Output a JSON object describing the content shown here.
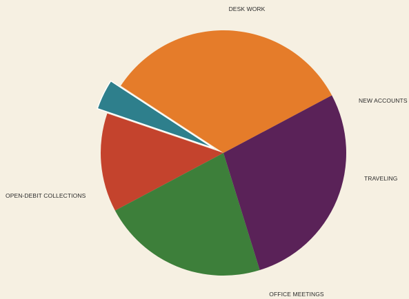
{
  "chart_data": {
    "type": "pie",
    "title": "",
    "slices": [
      {
        "label": "DESK WORK",
        "value": 33,
        "color": "#e57c2a"
      },
      {
        "label": "NEW ACCOUNTS",
        "value": 4,
        "color": "#2e7f8c",
        "exploded": true
      },
      {
        "label": "TRAVELING",
        "value": 13,
        "color": "#c4432d"
      },
      {
        "label": "OFFICE MEETINGS",
        "value": 22,
        "color": "#3d7f3a"
      },
      {
        "label": "OPEN-DEBIT COLLECTIONS",
        "value": 28,
        "color": "#5a2258"
      }
    ],
    "legend": "none"
  }
}
